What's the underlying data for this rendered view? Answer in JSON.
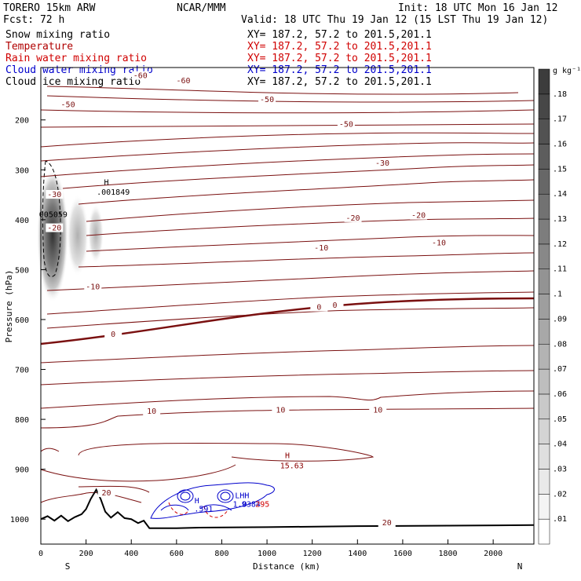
{
  "header": {
    "model": "TORERO  15km ARW",
    "center": "NCAR/MMM",
    "init": "Init: 18 UTC Mon 16 Jan 12",
    "fcst": "Fcst:   72 h",
    "valid": "Valid: 18 UTC Thu 19 Jan 12 (15 LST Thu 19 Jan 12)"
  },
  "fields": [
    {
      "name": "Snow mixing ratio",
      "xy": "XY= 187.2, 57.2 to 201.5,201.1",
      "color": "#000000",
      "xycolor": "#000000"
    },
    {
      "name": "Temperature",
      "xy": "XY= 187.2, 57.2 to 201.5,201.1",
      "color": "#b00000",
      "xycolor": "#d00000"
    },
    {
      "name": "Rain water mixing ratio",
      "xy": "XY= 187.2, 57.2 to 201.5,201.1",
      "color": "#d00000",
      "xycolor": "#d00000"
    },
    {
      "name": "Cloud water mixing ratio",
      "xy": "XY= 187.2, 57.2 to 201.5,201.1",
      "color": "#0000cc",
      "xycolor": "#0000cc"
    },
    {
      "name": "Cloud ice mixing ratio",
      "xy": "XY= 187.2, 57.2 to 201.5,201.1",
      "color": "#000000",
      "xycolor": "#000000"
    }
  ],
  "chart_data": {
    "type": "contour",
    "xlabel": "Distance (km)",
    "ylabel": "Pressure (hPa)",
    "xlim": [
      0,
      2180
    ],
    "ylim": [
      1050,
      95
    ],
    "x_ticks": [
      0,
      200,
      400,
      600,
      800,
      1000,
      1200,
      1400,
      1600,
      1800,
      2000
    ],
    "y_ticks": [
      200,
      300,
      400,
      500,
      600,
      700,
      800,
      900,
      1000
    ],
    "x_end_labels": {
      "left": "S",
      "right": "N"
    },
    "colorbar": {
      "unit": "g kg⁻¹",
      "levels": [
        ".01",
        ".02",
        ".03",
        ".04",
        ".05",
        ".06",
        ".07",
        ".08",
        ".09",
        ".1",
        ".11",
        ".12",
        ".13",
        ".14",
        ".15",
        ".16",
        ".17",
        ".18"
      ]
    },
    "temperature_labels": [
      {
        "text": "-60",
        "x": 440,
        "p": 115
      },
      {
        "text": "-60",
        "x": 630,
        "p": 125
      },
      {
        "text": "-50",
        "x": 120,
        "p": 173
      },
      {
        "text": "-50",
        "x": 1000,
        "p": 163
      },
      {
        "text": "-50",
        "x": 1350,
        "p": 212
      },
      {
        "text": "-30",
        "x": 1510,
        "p": 290
      },
      {
        "text": "-30",
        "x": 60,
        "p": 353
      },
      {
        "text": "-20",
        "x": 1380,
        "p": 400
      },
      {
        "text": "-20",
        "x": 1670,
        "p": 395
      },
      {
        "text": "-20",
        "x": 60,
        "p": 420
      },
      {
        "text": "-10",
        "x": 1240,
        "p": 460
      },
      {
        "text": "-10",
        "x": 1760,
        "p": 450
      },
      {
        "text": "-10",
        "x": 230,
        "p": 538
      },
      {
        "text": "0",
        "x": 1230,
        "p": 579
      },
      {
        "text": "0",
        "x": 1300,
        "p": 575
      },
      {
        "text": "0",
        "x": 320,
        "p": 633
      },
      {
        "text": "10",
        "x": 490,
        "p": 787
      },
      {
        "text": "10",
        "x": 1060,
        "p": 785
      },
      {
        "text": "10",
        "x": 1490,
        "p": 785
      },
      {
        "text": "20",
        "x": 290,
        "p": 951
      },
      {
        "text": "20",
        "x": 1530,
        "p": 1011
      }
    ],
    "extrema_labels": [
      {
        "text": "H",
        "x": 290,
        "p": 330,
        "color": "#000000"
      },
      {
        "text": ".001849",
        "x": 320,
        "p": 350,
        "color": "#000000"
      },
      {
        "text": "005059",
        "x": 55,
        "p": 395,
        "color": "#000000"
      },
      {
        "text": "H",
        "x": 1090,
        "p": 878,
        "color": "#8b0000"
      },
      {
        "text": "15.63",
        "x": 1110,
        "p": 898,
        "color": "#8b0000"
      },
      {
        "text": "H",
        "x": 690,
        "p": 968,
        "color": "#0000cc"
      },
      {
        "text": ".591",
        "x": 720,
        "p": 985,
        "color": "#0000cc"
      },
      {
        "text": "LHH",
        "x": 890,
        "p": 958,
        "color": "#0000cc"
      },
      {
        "text": "1.0",
        "x": 880,
        "p": 975,
        "color": "#0000cc"
      },
      {
        "text": "9384",
        "x": 930,
        "p": 975,
        "color": "#0000cc"
      },
      {
        "text": "295",
        "x": 980,
        "p": 975,
        "color": "#d00000"
      }
    ],
    "terrain": [
      [
        0,
        1000
      ],
      [
        30,
        994
      ],
      [
        60,
        1003
      ],
      [
        90,
        993
      ],
      [
        120,
        1004
      ],
      [
        150,
        996
      ],
      [
        180,
        990
      ],
      [
        200,
        980
      ],
      [
        220,
        960
      ],
      [
        245,
        941
      ],
      [
        265,
        960
      ],
      [
        285,
        985
      ],
      [
        310,
        997
      ],
      [
        340,
        986
      ],
      [
        370,
        998
      ],
      [
        400,
        1000
      ],
      [
        430,
        1008
      ],
      [
        455,
        1003
      ],
      [
        480,
        1018
      ],
      [
        600,
        1018
      ],
      [
        700,
        1017
      ],
      [
        1000,
        1016
      ],
      [
        1400,
        1014
      ],
      [
        1800,
        1013
      ],
      [
        2180,
        1012
      ]
    ]
  }
}
